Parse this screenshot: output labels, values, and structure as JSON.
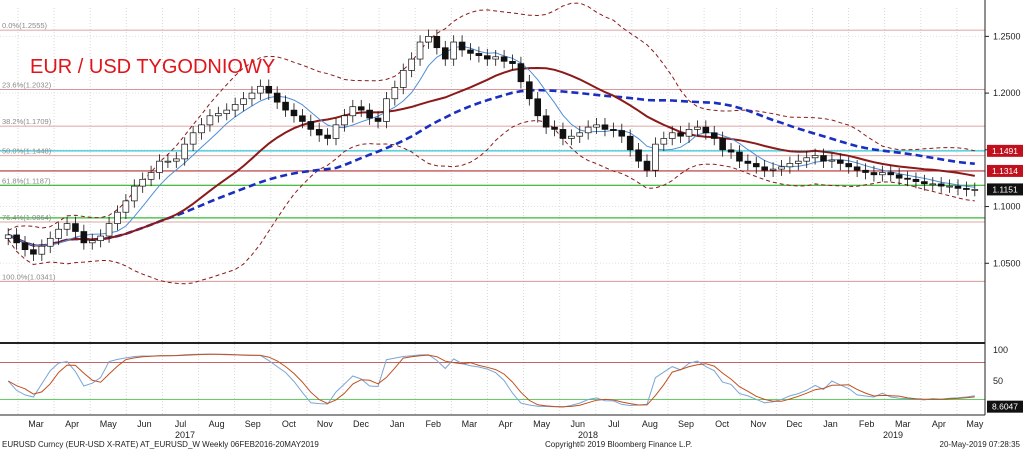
{
  "title": "EUR / USD TYGODNIOWY",
  "footer": {
    "left": "EURUSD Curncy (EUR-USD X-RATE) AT_EURUSD_W  Weekly 06FEB2016-20MAY2019",
    "center": "Copyright© 2019 Bloomberg Finance L.P.",
    "right": "20-May-2019 07:28:35"
  },
  "colors": {
    "up_candle": "#ffffff",
    "down_candle": "#111111",
    "sma_thin": "#4f8fd6",
    "sma_mid": "#8b1a1a",
    "sma_long": "#1a2fbf",
    "bollinger": "#8b1a1a",
    "fib_line": "#d18a8a",
    "support_green": "#2fbf2f",
    "resistance_red": "#b03030",
    "cyan_level": "#31c6d4"
  },
  "chart_data": {
    "type": "candlestick",
    "title": "EUR / USD TYGODNIOWY",
    "instrument": "EURUSD Curncy (EUR-USD X-RATE)",
    "timeframe": "Weekly",
    "y_range": [
      1.0,
      1.275
    ],
    "y_ticks": [
      "1.2500",
      "1.2000",
      "1.1500",
      "1.1000",
      "1.0500"
    ],
    "x_month_labels": [
      "Mar",
      "Apr",
      "May",
      "Jun",
      "Jul",
      "Aug",
      "Sep",
      "Oct",
      "Nov",
      "Dec",
      "Jan",
      "Feb",
      "Mar",
      "Apr",
      "May",
      "Jun",
      "Jul",
      "Aug",
      "Sep",
      "Oct",
      "Nov",
      "Dec",
      "Jan",
      "Feb",
      "Mar",
      "Apr",
      "May"
    ],
    "x_year_labels": [
      "2017",
      "2018",
      "2019"
    ],
    "fibonacci_levels": [
      {
        "label": "0.0%(1.2555)",
        "value": 1.2555
      },
      {
        "label": "23.6%(1.2032)",
        "value": 1.2032
      },
      {
        "label": "38.2%(1.1709)",
        "value": 1.1709
      },
      {
        "label": "50.0%(1.1448)",
        "value": 1.1448
      },
      {
        "label": "61.8%(1.1187)",
        "value": 1.1187
      },
      {
        "label": "76.4%(1.0864)",
        "value": 1.0864
      },
      {
        "label": "100.0%(1.0341)",
        "value": 1.0341
      }
    ],
    "horizontal_levels": [
      {
        "value": 1.1491,
        "color": "#31c6d4"
      },
      {
        "value": 1.1314,
        "color": "#b03030"
      },
      {
        "value": 1.1187,
        "color": "#2fbf2f"
      },
      {
        "value": 1.09,
        "color": "#2fbf2f"
      }
    ],
    "price_tags": [
      {
        "label": "1.1491",
        "value": 1.1491,
        "bg": "#c0101e"
      },
      {
        "label": "1.1314",
        "value": 1.1314,
        "bg": "#c0101e"
      },
      {
        "label": "1.1151",
        "value": 1.1151,
        "bg": "#111111"
      }
    ],
    "close_series": [
      1.075,
      1.068,
      1.062,
      1.058,
      1.065,
      1.072,
      1.08,
      1.085,
      1.078,
      1.068,
      1.07,
      1.074,
      1.085,
      1.095,
      1.105,
      1.118,
      1.124,
      1.13,
      1.14,
      1.14,
      1.142,
      1.155,
      1.165,
      1.172,
      1.18,
      1.182,
      1.185,
      1.19,
      1.195,
      1.2,
      1.206,
      1.2,
      1.192,
      1.185,
      1.18,
      1.175,
      1.168,
      1.163,
      1.16,
      1.172,
      1.18,
      1.188,
      1.185,
      1.178,
      1.175,
      1.195,
      1.205,
      1.22,
      1.23,
      1.245,
      1.25,
      1.24,
      1.23,
      1.245,
      1.238,
      1.235,
      1.233,
      1.23,
      1.232,
      1.228,
      1.226,
      1.21,
      1.195,
      1.18,
      1.17,
      1.168,
      1.16,
      1.162,
      1.165,
      1.17,
      1.172,
      1.168,
      1.167,
      1.162,
      1.15,
      1.14,
      1.132,
      1.155,
      1.16,
      1.165,
      1.162,
      1.168,
      1.17,
      1.165,
      1.16,
      1.15,
      1.148,
      1.14,
      1.138,
      1.135,
      1.132,
      1.133,
      1.135,
      1.138,
      1.14,
      1.143,
      1.145,
      1.14,
      1.141,
      1.138,
      1.135,
      1.132,
      1.13,
      1.128,
      1.13,
      1.128,
      1.125,
      1.124,
      1.122,
      1.12,
      1.12,
      1.118,
      1.118,
      1.116,
      1.115,
      1.1151
    ],
    "sub_panel": {
      "type": "stochastic",
      "y_ticks": [
        "100",
        "50"
      ],
      "levels": [
        80,
        20
      ],
      "last_value_label": "8.6047",
      "last_value": 8.6047
    }
  }
}
